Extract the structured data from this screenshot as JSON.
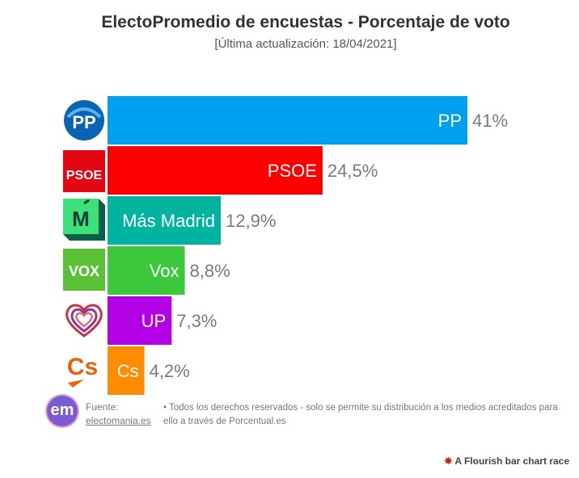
{
  "header": {
    "title": "ElectoPromedio de encuestas - Porcentaje de voto",
    "subtitle": "[Última actualización: 18/04/2021]"
  },
  "footer": {
    "fuente_label": "Fuente:",
    "fuente_link": "electomania.es",
    "rights": "• Todos los derechos reservados - solo se permite su distribución a los medios acreditados para ello a través de Porcentual.es",
    "flourish": "A Flourish bar chart race",
    "logo_text": "em"
  },
  "logos": {
    "pp": "PP",
    "psoe": "PSOE",
    "mas_madrid": "M",
    "vox": "VOX",
    "cs": "Cs"
  },
  "chart_data": {
    "type": "bar",
    "orientation": "horizontal",
    "title": "ElectoPromedio de encuestas - Porcentaje de voto",
    "subtitle": "[Última actualización: 18/04/2021]",
    "categories": [
      "PP",
      "PSOE",
      "Más Madrid",
      "Vox",
      "UP",
      "Cs"
    ],
    "values": [
      41,
      24.5,
      12.9,
      8.8,
      7.3,
      4.2
    ],
    "value_labels": [
      "41%",
      "24,5%",
      "12,9%",
      "8,8%",
      "7,3%",
      "4,2%"
    ],
    "colors": [
      "#00a0f0",
      "#ff0000",
      "#00b4a0",
      "#3cc83c",
      "#b400e6",
      "#ff8c00"
    ],
    "xlim": [
      0,
      41
    ],
    "grid": false,
    "legend": "none"
  }
}
